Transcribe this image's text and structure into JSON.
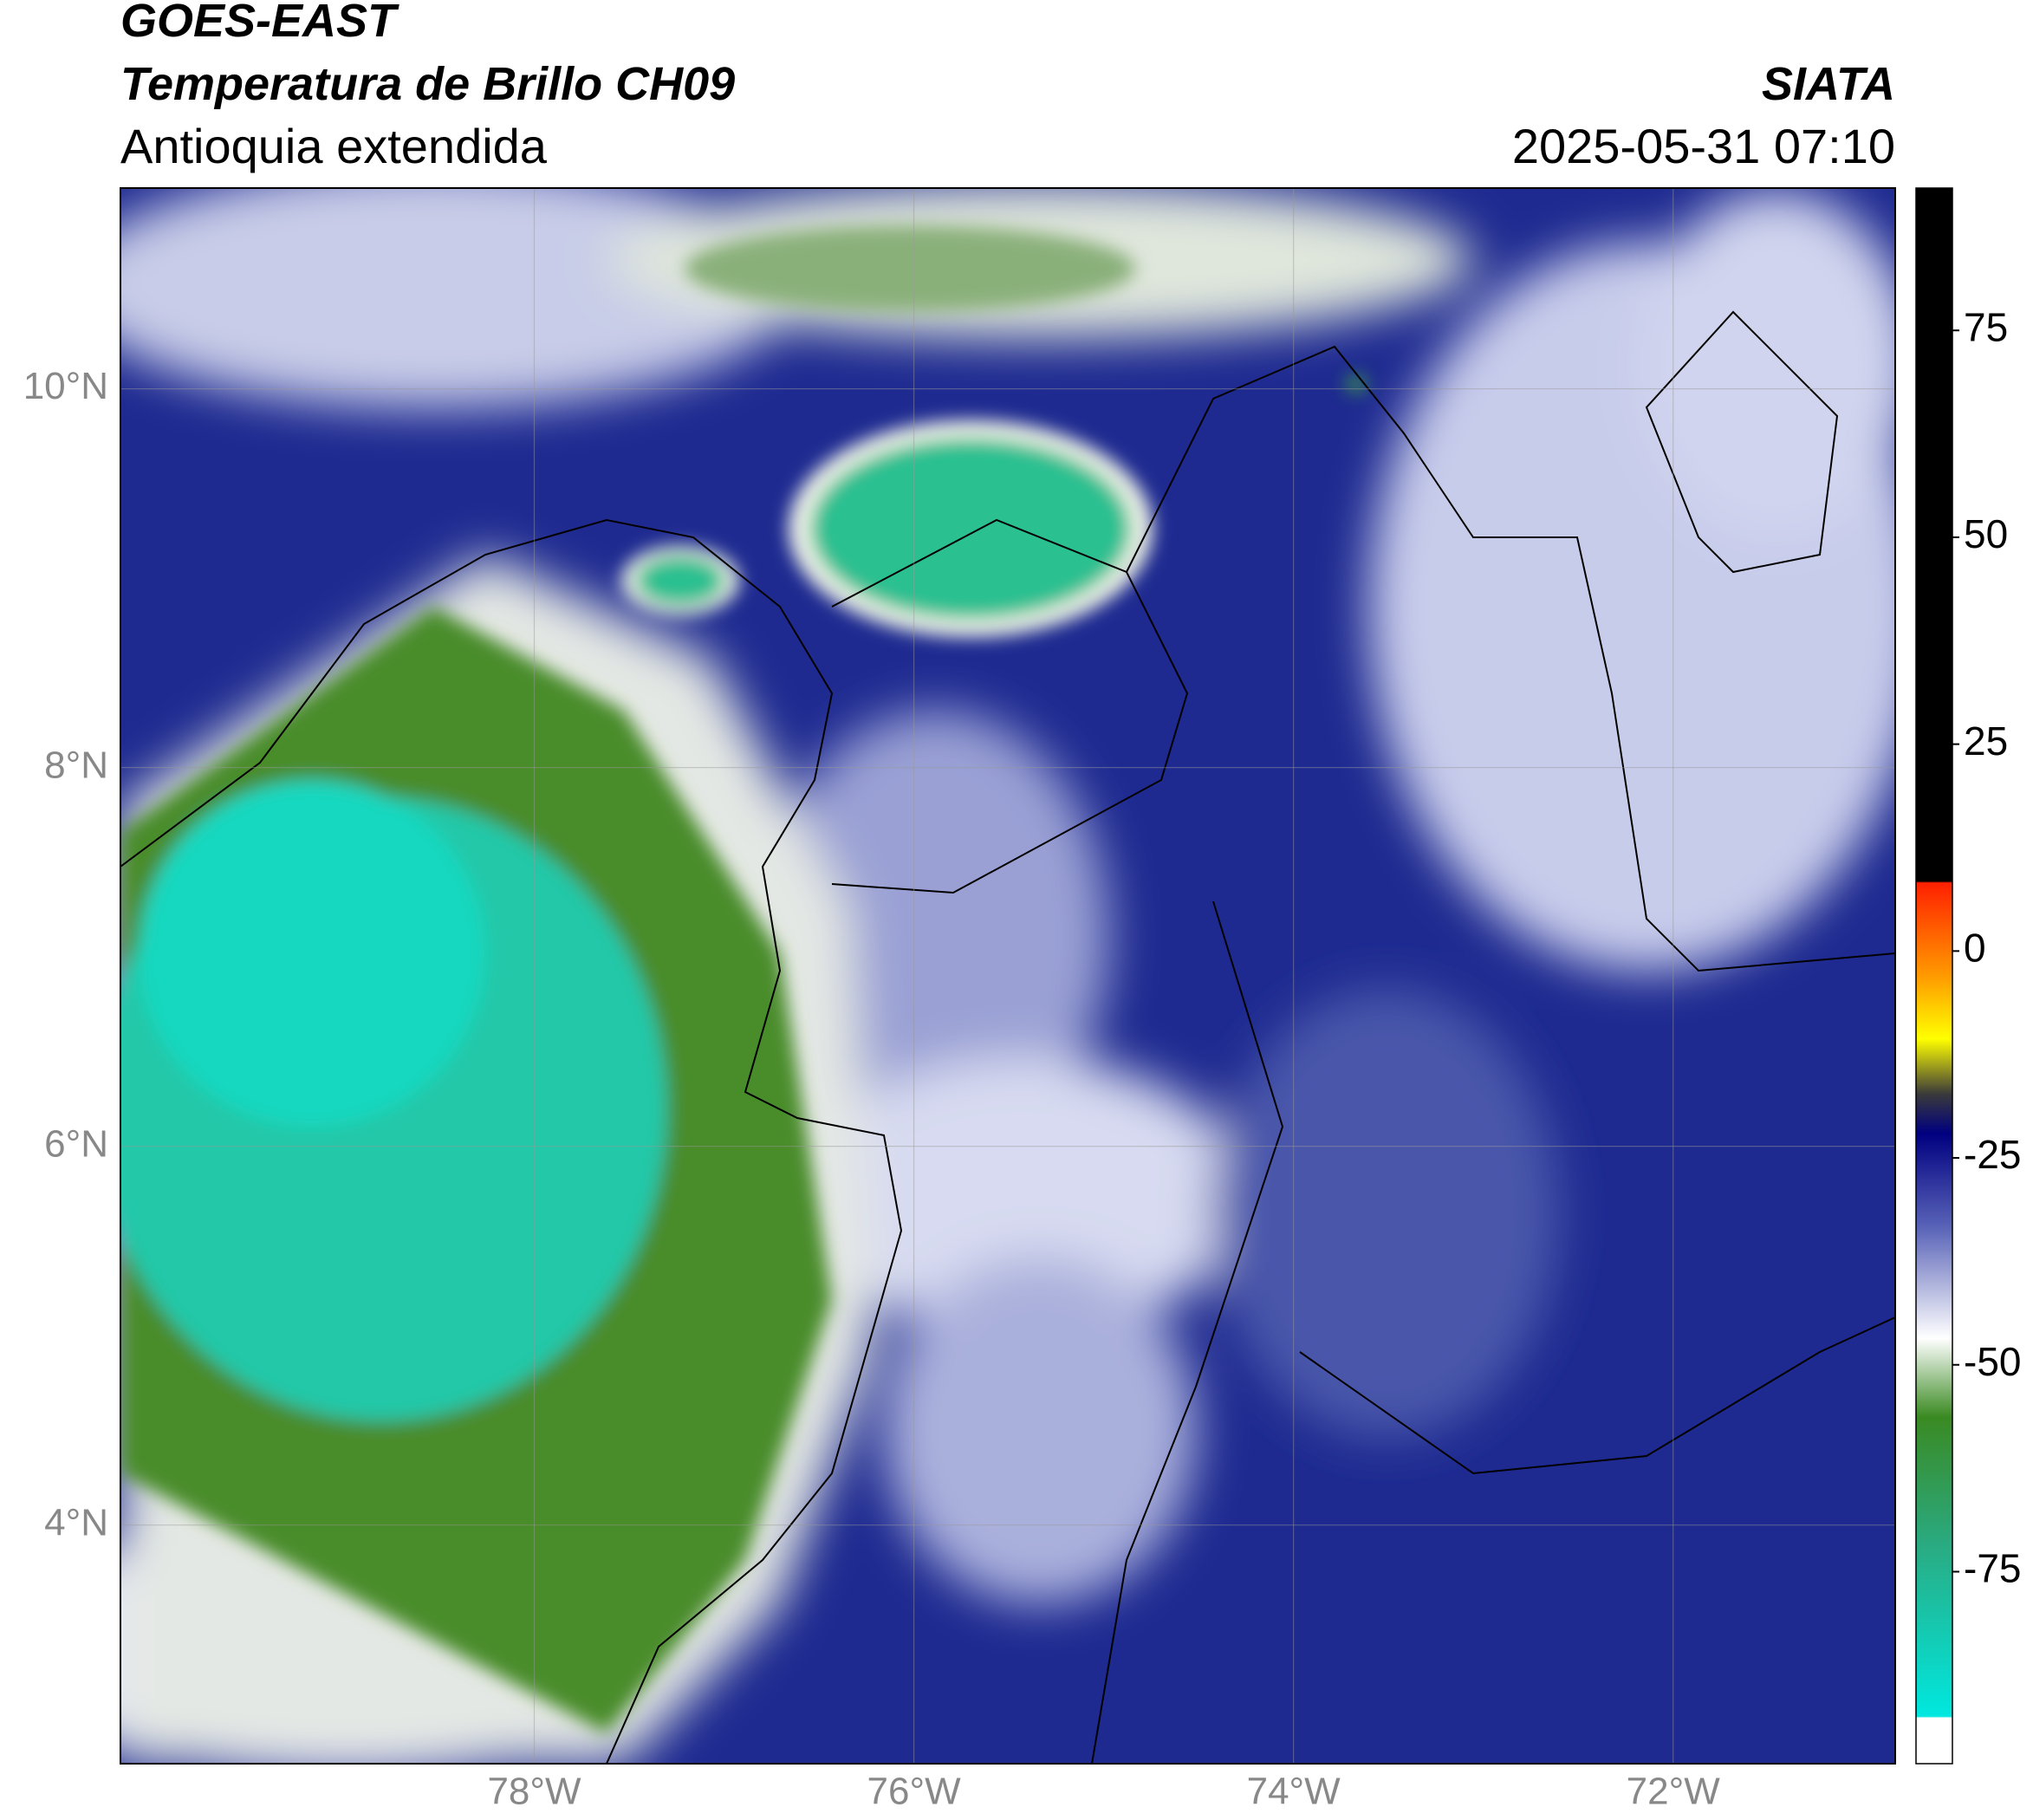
{
  "map": {
    "title": "GOES-EAST",
    "subtitle": "Temperatura de Brillo CH09",
    "region": "Antioquia extendida",
    "source": "SIATA",
    "timestamp": "2025-05-31 07:10",
    "xlim": [
      -80.18,
      -70.83
    ],
    "ylim": [
      2.74,
      11.06
    ],
    "xticks": [
      {
        "value": -78,
        "label": "78°W"
      },
      {
        "value": -76,
        "label": "76°W"
      },
      {
        "value": -74,
        "label": "74°W"
      },
      {
        "value": -72,
        "label": "72°W"
      }
    ],
    "yticks": [
      {
        "value": 10,
        "label": "10°N"
      },
      {
        "value": 8,
        "label": "8°N"
      },
      {
        "value": 6,
        "label": "6°N"
      },
      {
        "value": 4,
        "label": "4°N"
      }
    ],
    "grid": true,
    "colorbar": {
      "lim": [
        -98.2,
        92.2
      ],
      "ticks": [
        75,
        50,
        25,
        0,
        -25,
        -50,
        -75
      ]
    }
  }
}
